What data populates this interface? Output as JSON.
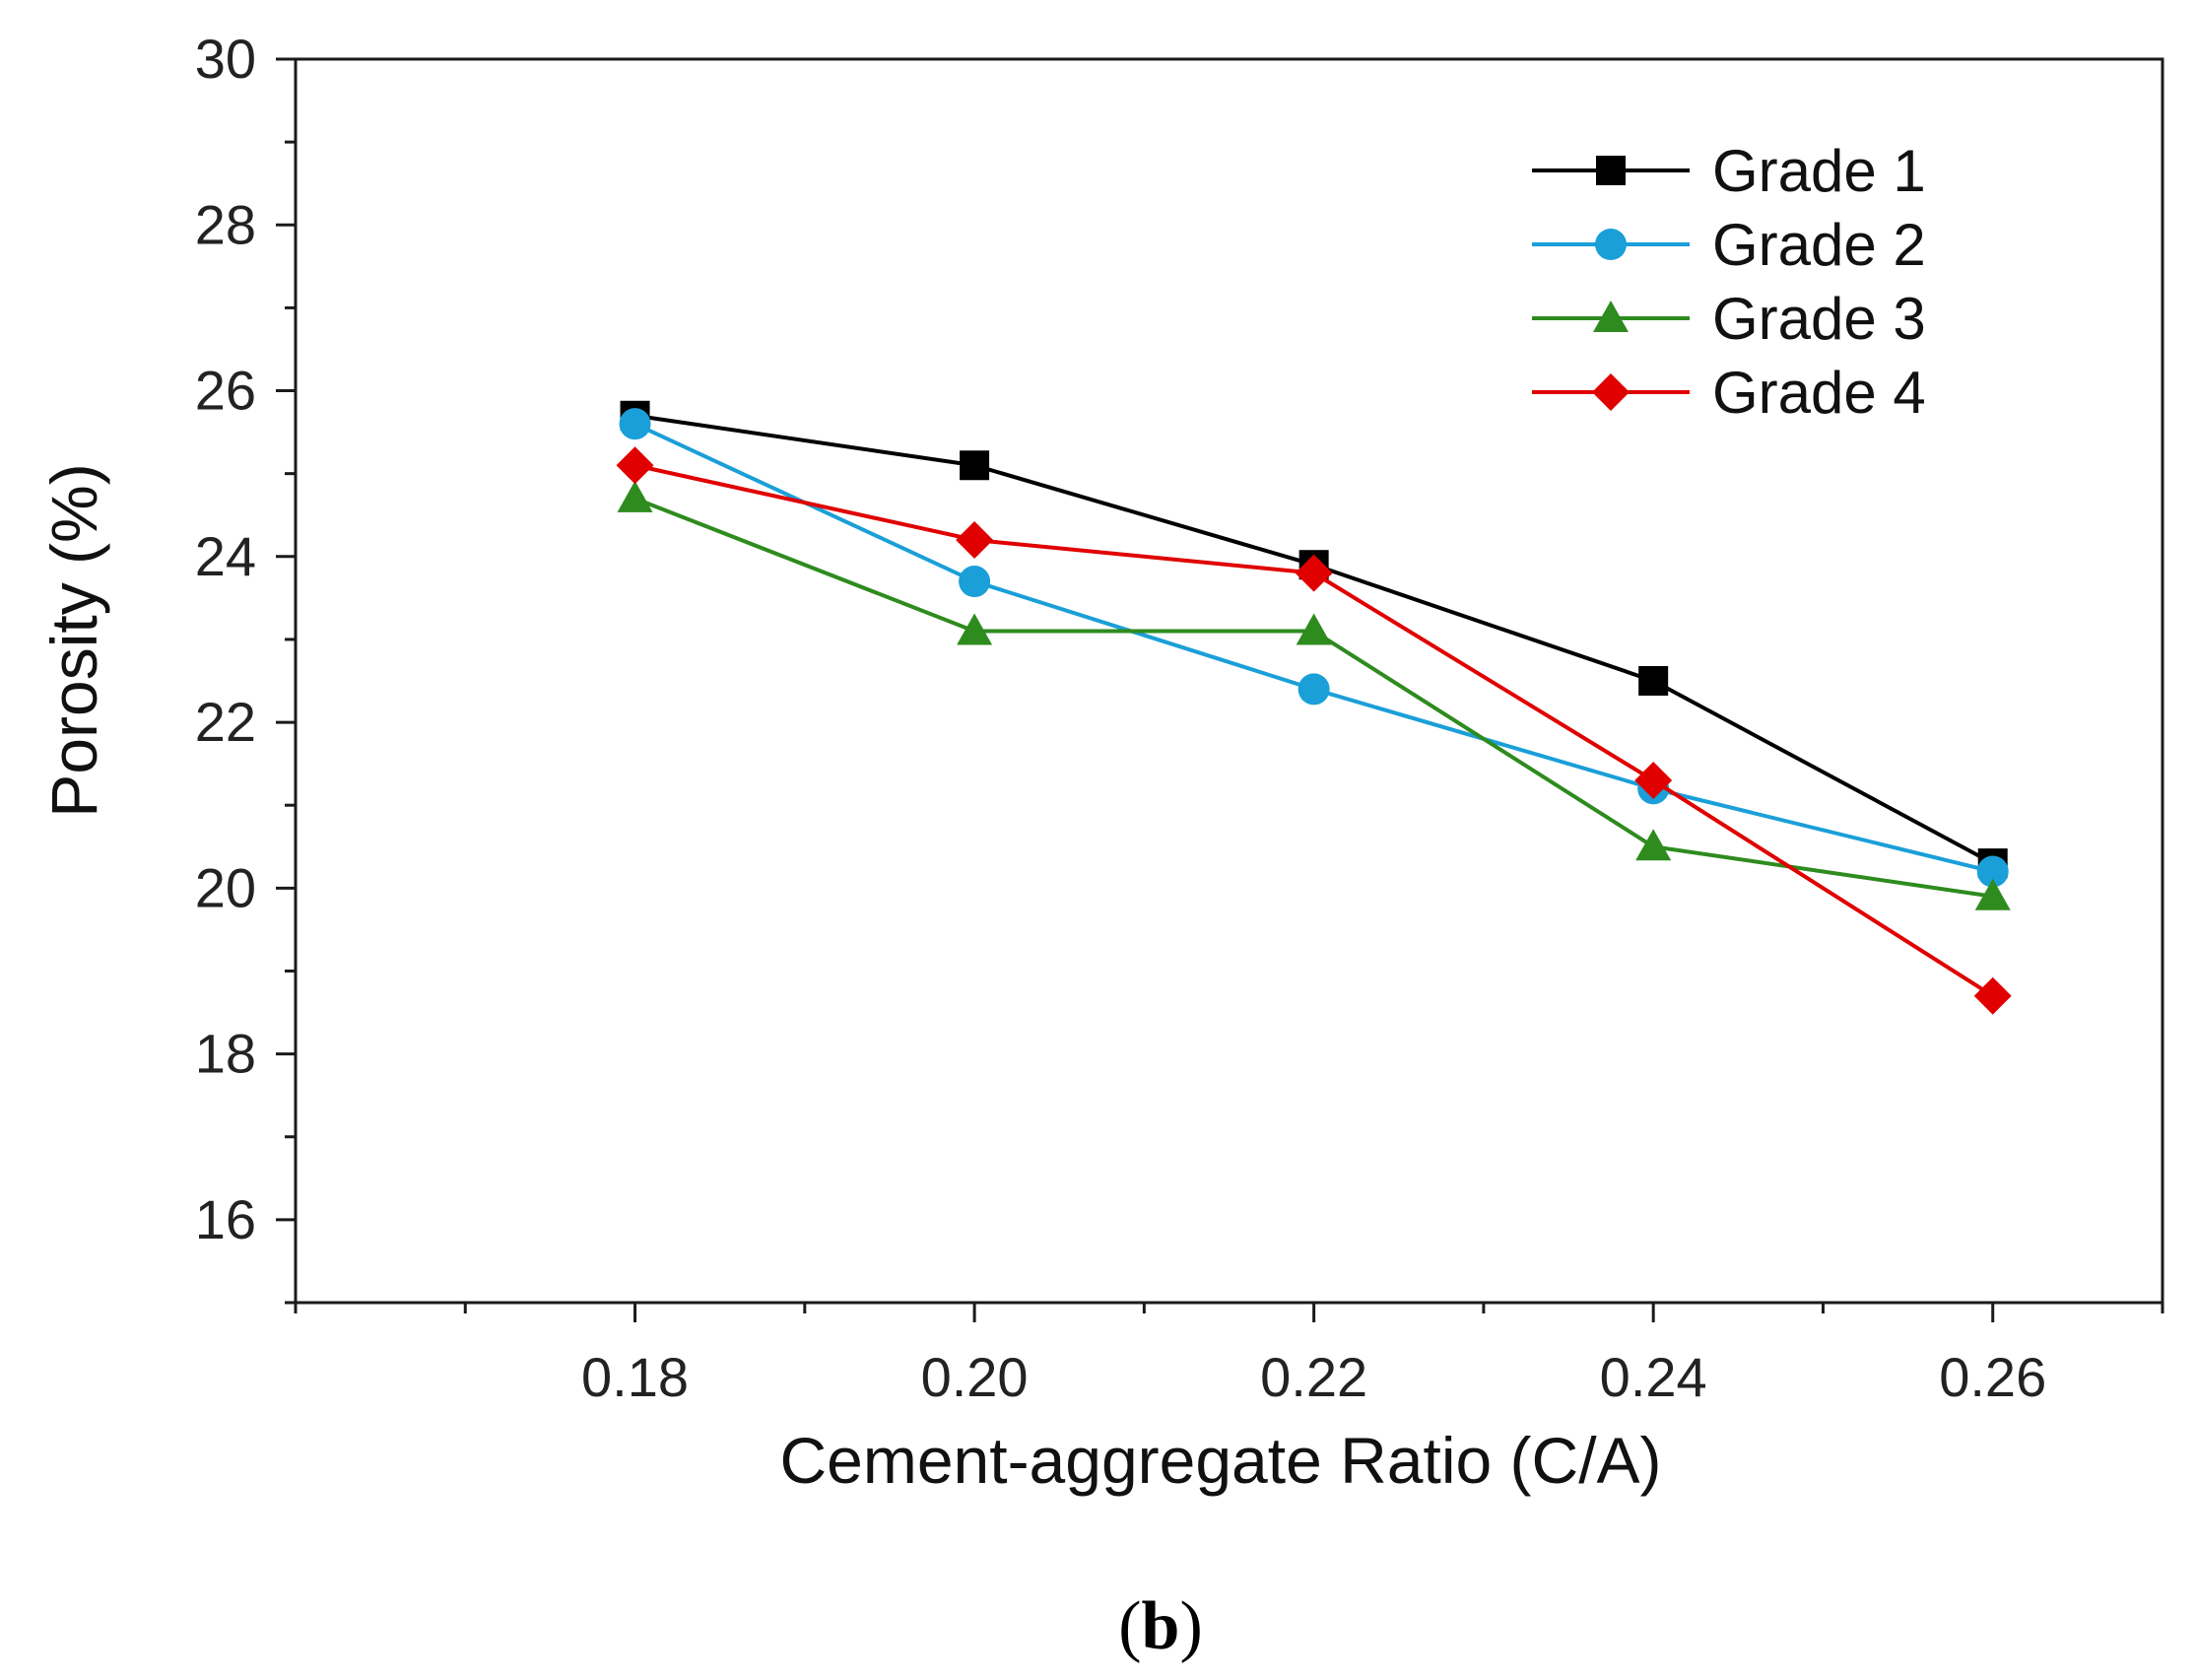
{
  "chart_data": {
    "type": "line",
    "title": "",
    "xlabel": "Cement-aggregate Ratio (C/A)",
    "ylabel": "Porosity (%)",
    "x": [
      0.18,
      0.2,
      0.22,
      0.24,
      0.26
    ],
    "x_tick_labels": [
      "0.18",
      "0.20",
      "0.22",
      "0.24",
      "0.26"
    ],
    "y_ticks": [
      16,
      18,
      20,
      22,
      24,
      26,
      28,
      30
    ],
    "y_tick_labels": [
      "16",
      "18",
      "20",
      "22",
      "24",
      "26",
      "28",
      "30"
    ],
    "xlim": [
      0.16,
      0.27
    ],
    "ylim": [
      15,
      30
    ],
    "grid": false,
    "legend_position": "top-right",
    "series": [
      {
        "name": "Grade 1",
        "values": [
          25.7,
          25.1,
          23.9,
          22.5,
          20.3
        ],
        "color": "#000000",
        "marker": "square"
      },
      {
        "name": "Grade 2",
        "values": [
          25.6,
          23.7,
          22.4,
          21.2,
          20.2
        ],
        "color": "#1a9fd8",
        "marker": "circle"
      },
      {
        "name": "Grade 3",
        "values": [
          24.7,
          23.1,
          23.1,
          20.5,
          19.9
        ],
        "color": "#2e8b1e",
        "marker": "triangle"
      },
      {
        "name": "Grade 4",
        "values": [
          25.1,
          24.2,
          23.8,
          21.3,
          18.7
        ],
        "color": "#e00000",
        "marker": "diamond"
      }
    ],
    "caption": {
      "open": "(",
      "label": "b",
      "close": ")"
    }
  }
}
